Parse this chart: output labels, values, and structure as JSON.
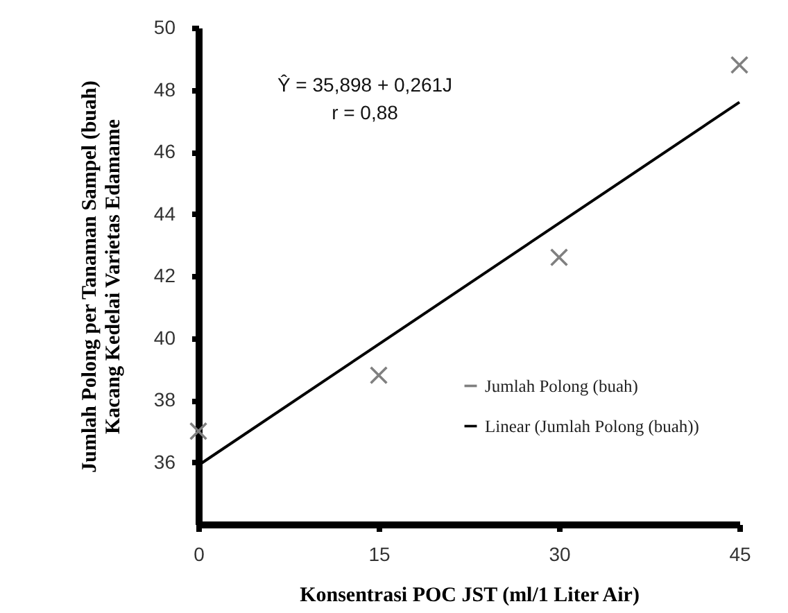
{
  "chart_data": {
    "type": "scatter",
    "xlabel": "Konsentrasi  POC JST (ml/1 Liter Air)",
    "ylabel": "Jumlah Polong per Tanaman Sampel (buah)\nKacang Kedelai Varietas Edamame",
    "x": [
      0,
      15,
      30,
      45
    ],
    "series": [
      {
        "name": "Jumlah Polong (buah)",
        "color": "#808080",
        "type": "scatter",
        "marker": "cross",
        "values": [
          37.0,
          38.8,
          42.6,
          48.8
        ]
      },
      {
        "name": "Linear (Jumlah Polong (buah))",
        "color": "#000000",
        "type": "line",
        "x": [
          0,
          45
        ],
        "values": [
          35.9,
          47.6
        ]
      }
    ],
    "xlim": [
      0,
      45
    ],
    "xticks": [
      0,
      15,
      30,
      45
    ],
    "ylim": [
      34,
      50
    ],
    "yticks": [
      36,
      38,
      40,
      42,
      44,
      46,
      48,
      50
    ],
    "annotations": [
      "Ŷ = 35,898 + 0,261J\nr = 0,88"
    ],
    "legend": "right",
    "grid": false
  }
}
